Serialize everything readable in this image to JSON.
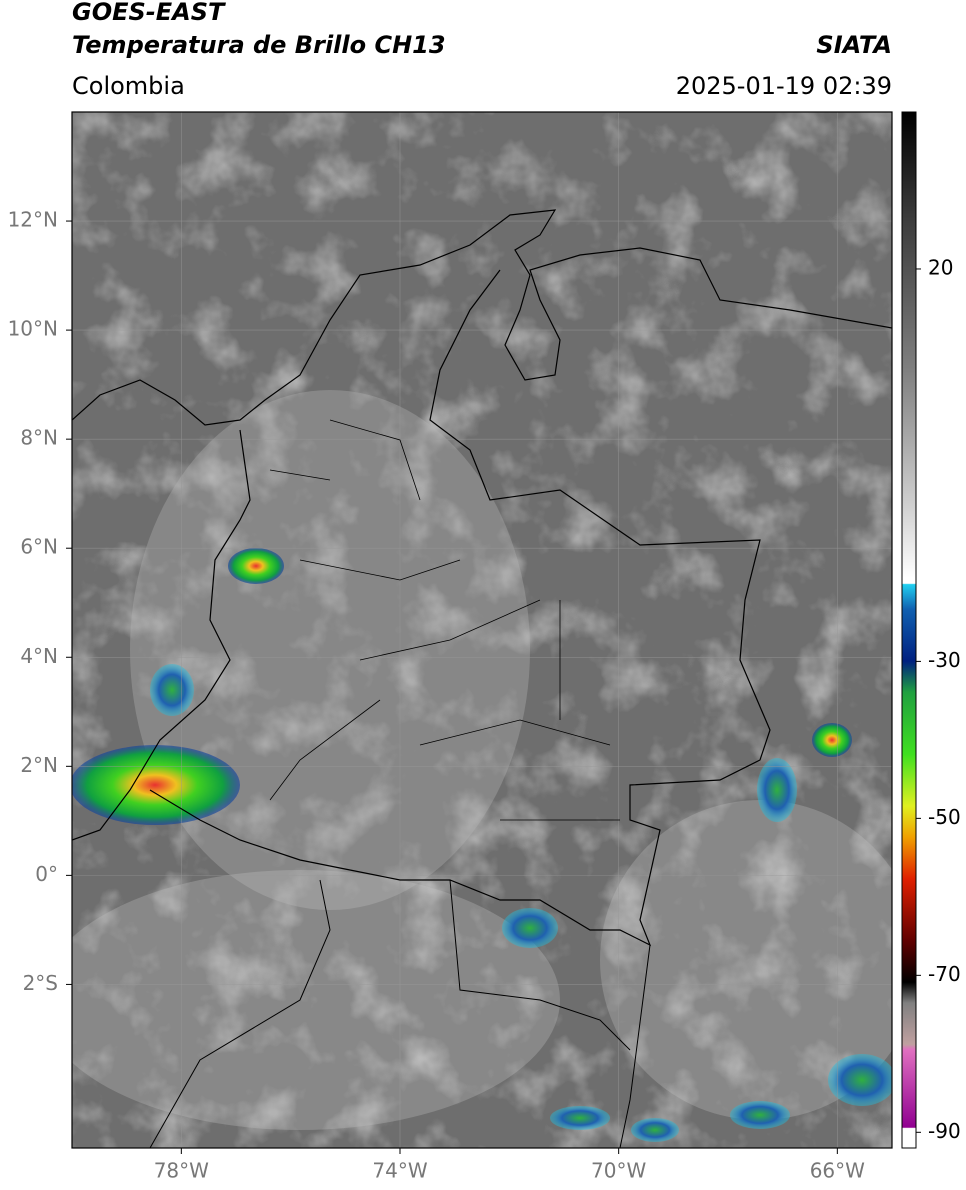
{
  "chart_data": {
    "type": "map",
    "title": "GOES-EAST",
    "subtitle": "Temperatura de Brillo CH13",
    "source": "SIATA",
    "region": "Colombia",
    "timestamp": "2025-01-19 02:39",
    "xlim": [
      -80,
      -65
    ],
    "ylim": [
      -5,
      14
    ],
    "xticks": [
      {
        "value": -78,
        "label": "78°W"
      },
      {
        "value": -74,
        "label": "74°W"
      },
      {
        "value": -70,
        "label": "70°W"
      },
      {
        "value": -66,
        "label": "66°W"
      }
    ],
    "yticks": [
      {
        "value": 12,
        "label": "12°N"
      },
      {
        "value": 10,
        "label": "10°N"
      },
      {
        "value": 8,
        "label": "8°N"
      },
      {
        "value": 6,
        "label": "6°N"
      },
      {
        "value": 4,
        "label": "4°N"
      },
      {
        "value": 2,
        "label": "2°N"
      },
      {
        "value": 0,
        "label": "0°"
      },
      {
        "value": -2,
        "label": "2°S"
      }
    ],
    "grid": true,
    "colorbar": {
      "lim": [
        -92,
        40
      ],
      "ticks": [
        20,
        -30,
        -50,
        -70,
        -90
      ]
    }
  }
}
